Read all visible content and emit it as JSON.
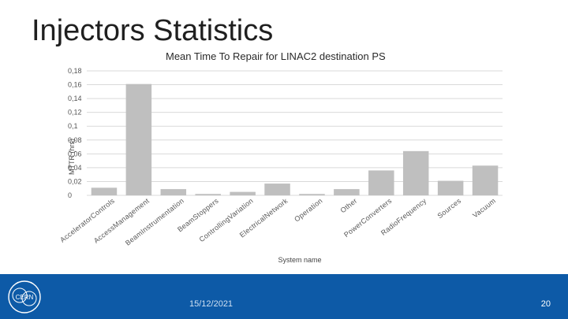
{
  "slide": {
    "title": "Injectors Statistics",
    "date": "15/12/2021",
    "page_number": "20",
    "logo_text": "CERN"
  },
  "colors": {
    "bar": "#bfbfbf",
    "grid": "#d9d9d9",
    "footer": "#0d5aa7"
  },
  "chart_data": {
    "type": "bar",
    "title": "Mean Time To Repair for LINAC2 destination PS",
    "xlabel": "System name",
    "ylabel": "MTTR (hrs)",
    "ylim": [
      0,
      0.18
    ],
    "yticks": [
      0,
      0.02,
      0.04,
      0.06,
      0.08,
      0.1,
      0.12,
      0.14,
      0.16,
      0.18
    ],
    "ytick_labels": [
      "0",
      "0,02",
      "0,04",
      "0,06",
      "0,08",
      "0,1",
      "0,12",
      "0,14",
      "0,16",
      "0,18"
    ],
    "grid": true,
    "legend": "none",
    "categories": [
      "AcceleratorControls",
      "AccessManagement",
      "BeamInstrumentation",
      "BeamStoppers",
      "ControllingVariation",
      "ElectricalNetwork",
      "Operation",
      "Other",
      "PowerConverters",
      "RadioFrequency",
      "Sources",
      "Vacuum"
    ],
    "values": [
      0.011,
      0.161,
      0.009,
      0.002,
      0.005,
      0.017,
      0.002,
      0.009,
      0.036,
      0.064,
      0.021,
      0.043
    ]
  }
}
